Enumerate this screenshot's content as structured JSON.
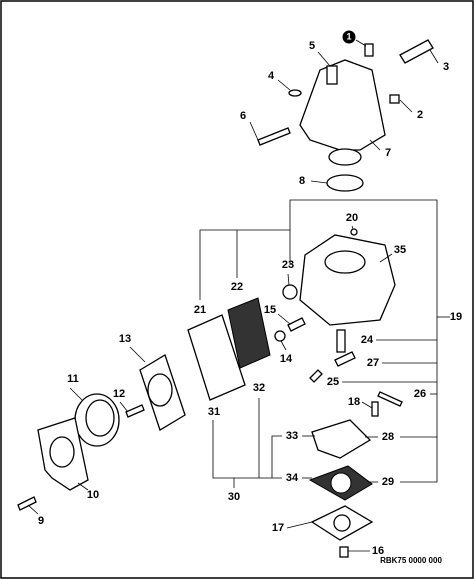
{
  "callouts": [
    "1",
    "2",
    "3",
    "4",
    "5",
    "6",
    "7",
    "8",
    "9",
    "10",
    "11",
    "12",
    "13",
    "14",
    "15",
    "16",
    "17",
    "18",
    "19",
    "20",
    "21",
    "22",
    "23",
    "24",
    "25",
    "26",
    "27",
    "28",
    "29",
    "30",
    "31",
    "32",
    "33",
    "34",
    "35"
  ],
  "reference": "RBK75 0000 000"
}
